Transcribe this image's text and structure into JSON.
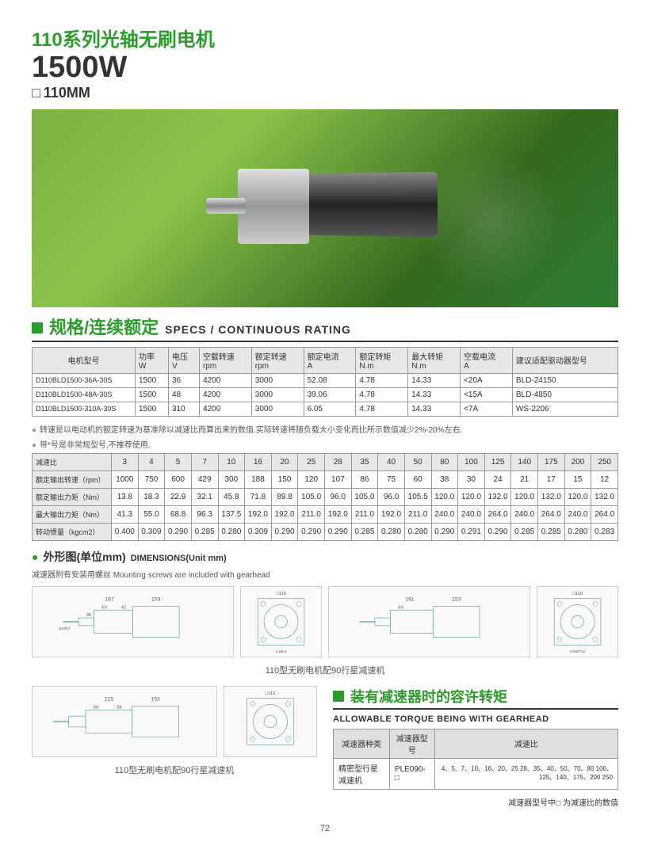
{
  "header": {
    "series": "110系列光轴无刷电机",
    "power": "1500W",
    "size": "110MM"
  },
  "specs_section": {
    "title_zh": "规格/连续额定",
    "title_en": "SPECS / CONTINUOUS RATING",
    "columns": [
      {
        "zh": "电机型号",
        "unit": ""
      },
      {
        "zh": "功率",
        "unit": "W"
      },
      {
        "zh": "电压",
        "unit": "V"
      },
      {
        "zh": "空载转速",
        "unit": "rpm"
      },
      {
        "zh": "额定转速",
        "unit": "rpm"
      },
      {
        "zh": "额定电流",
        "unit": "A"
      },
      {
        "zh": "额定转矩",
        "unit": "N.m"
      },
      {
        "zh": "最大转矩",
        "unit": "N.m"
      },
      {
        "zh": "空载电流",
        "unit": "A"
      },
      {
        "zh": "建议适配驱动器型号",
        "unit": ""
      }
    ],
    "rows": [
      [
        "D110BLD1500-36A-30S",
        "1500",
        "36",
        "4200",
        "3000",
        "52.08",
        "4.78",
        "14.33",
        "<20A",
        "BLD-24150"
      ],
      [
        "D110BLD1500-48A-30S",
        "1500",
        "48",
        "4200",
        "3000",
        "39.06",
        "4.78",
        "14.33",
        "<15A",
        "BLD-4850"
      ],
      [
        "D110BLD1500-310A-30S",
        "1500",
        "310",
        "4200",
        "3000",
        "6.05",
        "4.78",
        "14.33",
        "<7A",
        "WS-2206"
      ]
    ],
    "note1": "转速是以电动机的额定转速为基准除以减速比而算出来的数值.实际转速将随负载大小变化而比所示数值减少2%-20%左右.",
    "note2": "带*号是非常规型号,不推荐使用."
  },
  "ratio_table": {
    "row_labels": [
      "减速比",
      "额定输出转速（rpm）",
      "额定输出力矩（Nm）",
      "最大输出力矩（Nm）",
      "转动惯量（kgcm2）"
    ],
    "ratios": [
      "3",
      "4",
      "5",
      "7",
      "10",
      "16",
      "20",
      "25",
      "28",
      "35",
      "40",
      "50",
      "80",
      "100",
      "125",
      "140",
      "175",
      "200",
      "250"
    ],
    "rpm": [
      "1000",
      "750",
      "600",
      "429",
      "300",
      "188",
      "150",
      "120",
      "107",
      "86",
      "75",
      "60",
      "38",
      "30",
      "24",
      "21",
      "17",
      "15",
      "12"
    ],
    "rated_torque": [
      "13.8",
      "18.3",
      "22.9",
      "32.1",
      "45.8",
      "71.8",
      "89.8",
      "105.0",
      "96.0",
      "105.0",
      "96.0",
      "105.5",
      "120.0",
      "120.0",
      "132.0",
      "120.0",
      "132.0",
      "120.0",
      "132.0"
    ],
    "max_torque": [
      "41.3",
      "55.0",
      "68.8",
      "96.3",
      "137.5",
      "192.0",
      "192.0",
      "211.0",
      "192.0",
      "211.0",
      "192.0",
      "211.0",
      "240.0",
      "240.0",
      "264.0",
      "240.0",
      "264.0",
      "240.0",
      "264.0"
    ],
    "inertia": [
      "0.400",
      "0.309",
      "0.290",
      "0.285",
      "0.280",
      "0.309",
      "0.290",
      "0.290",
      "0.290",
      "0.285",
      "0.280",
      "0.280",
      "0.290",
      "0.291",
      "0.290",
      "0.285",
      "0.285",
      "0.280",
      "0.283"
    ]
  },
  "dimensions": {
    "bullet": "●",
    "title_zh": "外形图(单位mm)",
    "title_en": "DIMENSIONS(Unit mm)",
    "note": "减速器附有安装用螺丝 Mounting screws are included with gearhead",
    "caption1": "110型无刷电机配90行星减速机",
    "caption2": "110型无刷电机配90行星减速机",
    "dims1": {
      "l1": "167",
      "l2": "153",
      "l3": "60",
      "l4": "42",
      "l5": "35",
      "shaft": "ø22h7",
      "flange": "□110",
      "face": "□90",
      "holes": "4-ø6.5",
      "pcd": "□100"
    },
    "dims2": {
      "l1": "191",
      "l2": "153",
      "l3": "60",
      "l4": "42",
      "l5": "35",
      "shaft": "ø22h7",
      "flange": "□110",
      "face": "□90",
      "holes": "4-M6T12",
      "pcd": "□100"
    },
    "dims3": {
      "l1": "215",
      "l2": "153",
      "l3": "60",
      "l4": "56",
      "l5": "42",
      "shaft": "ø25ø20h7",
      "flange": "□110",
      "face": "□90"
    }
  },
  "torque_section": {
    "title_zh": "装有减速器时的容许转矩",
    "title_en": "ALLOWABLE TORQUE BEING WITH GEARHEAD",
    "col1": "减速器种类",
    "col2": "减速器型号",
    "col3": "减速比",
    "type": "精密型行星减速机",
    "model": "PLE090-□",
    "ratios": "4、5、7、10、16、20、25 28、35、40、50、70、80 100、125、140、175、200 250",
    "note": "减速器型号中□ 为减速比的数值"
  },
  "page_number": "72"
}
